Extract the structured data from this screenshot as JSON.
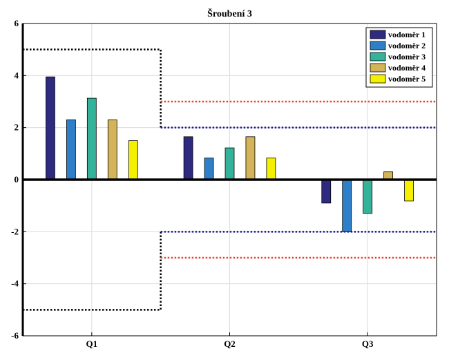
{
  "chart_data": {
    "type": "bar",
    "title": "Šroubení 3",
    "xlabel": "",
    "ylabel": "",
    "categories": [
      "Q1",
      "Q2",
      "Q3"
    ],
    "ylim": [
      -6,
      6
    ],
    "yticks": [
      -6,
      -4,
      -2,
      0,
      2,
      4,
      6
    ],
    "grid": true,
    "legend_position": "top-right",
    "series": [
      {
        "name": "vodoměr 1",
        "color": "#2e2a7f",
        "values": [
          3.95,
          1.65,
          -0.9
        ]
      },
      {
        "name": "vodoměr 2",
        "color": "#2f7fc8",
        "values": [
          2.3,
          0.83,
          -2.0
        ]
      },
      {
        "name": "vodoměr 3",
        "color": "#33b39a",
        "values": [
          3.13,
          1.22,
          -1.3
        ]
      },
      {
        "name": "vodoměr 4",
        "color": "#d4b45a",
        "values": [
          2.3,
          1.65,
          0.3
        ]
      },
      {
        "name": "vodoměr 5",
        "color": "#f5f000",
        "values": [
          1.5,
          0.83,
          -0.82
        ]
      }
    ],
    "reference_lines": [
      {
        "color": "#000000",
        "segments": [
          [
            [
              0.5,
              5
            ],
            [
              1.5,
              5
            ],
            [
              1.5,
              2
            ]
          ],
          [
            [
              0.5,
              -5
            ],
            [
              1.5,
              -5
            ],
            [
              1.5,
              -2
            ]
          ]
        ]
      },
      {
        "color": "#1a1a8c",
        "segments": [
          [
            [
              1.5,
              2
            ],
            [
              3.5,
              2
            ]
          ],
          [
            [
              1.5,
              -2
            ],
            [
              3.5,
              -2
            ]
          ]
        ]
      },
      {
        "color": "#e8402a",
        "segments": [
          [
            [
              1.5,
              3
            ],
            [
              3.5,
              3
            ]
          ],
          [
            [
              1.5,
              -3
            ],
            [
              3.5,
              -3
            ]
          ]
        ]
      }
    ],
    "xlim": [
      0.5,
      3.5
    ]
  }
}
